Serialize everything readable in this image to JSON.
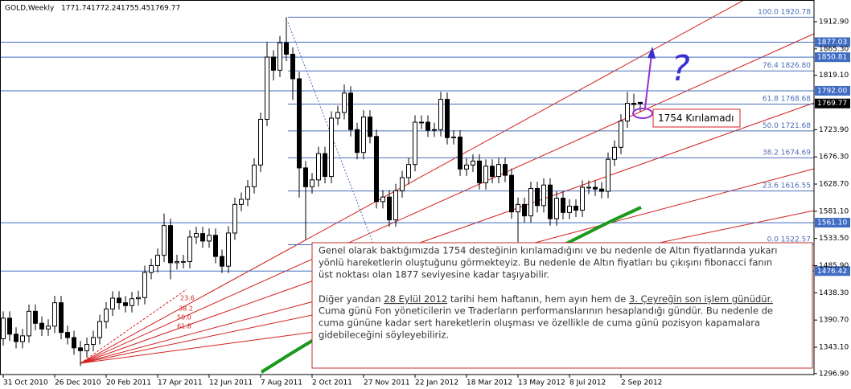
{
  "header": {
    "symbol": "GOLD,Weekly"
  },
  "chart_data": {
    "type": "candlestick",
    "categories": [
      "31 Oct 2010",
      null,
      null,
      null,
      null,
      null,
      null,
      null,
      "26 Dec 2010",
      null,
      null,
      null,
      null,
      null,
      null,
      null,
      "20 Feb 2011",
      null,
      null,
      null,
      null,
      null,
      null,
      null,
      "17 Apr 2011",
      null,
      null,
      null,
      null,
      null,
      null,
      null,
      "12 Jun 2011",
      null,
      null,
      null,
      null,
      null,
      null,
      null,
      "7 Aug 2011",
      null,
      null,
      null,
      null,
      null,
      null,
      null,
      "2 Oct 2011",
      null,
      null,
      null,
      null,
      null,
      null,
      null,
      "27 Nov 2011",
      null,
      null,
      null,
      null,
      null,
      null,
      null,
      "22 Jan 2012",
      null,
      null,
      null,
      null,
      null,
      null,
      null,
      "18 Mar 2012",
      null,
      null,
      null,
      null,
      null,
      null,
      null,
      "13 May 2012",
      null,
      null,
      null,
      null,
      null,
      null,
      null,
      "8 Jul 2012",
      null,
      null,
      null,
      null,
      null,
      null,
      null,
      "2 Sep 2012",
      null,
      null,
      null
    ],
    "open": [
      1358,
      1394,
      1366,
      1353,
      1363,
      1406,
      1385,
      1375,
      1380,
      1421,
      1369,
      1360,
      1342,
      1337,
      1348,
      1360,
      1388,
      1410,
      1429,
      1421,
      1416,
      1428,
      1430,
      1474,
      1486,
      1504,
      1556,
      1491,
      1493,
      1493,
      1536,
      1542,
      1529,
      1539,
      1502,
      1485,
      1543,
      1593,
      1602,
      1624,
      1662,
      1742,
      1851,
      1828,
      1876,
      1856,
      1813,
      1657,
      1624,
      1636,
      1682,
      1642,
      1744,
      1754,
      1788,
      1724,
      1684,
      1746,
      1712,
      1598,
      1606,
      1566,
      1617,
      1640,
      1663,
      1737,
      1737,
      1723,
      1724,
      1777,
      1710,
      1711,
      1655,
      1662,
      1669,
      1631,
      1660,
      1642,
      1663,
      1644,
      1580,
      1593,
      1573,
      1621,
      1591,
      1627,
      1568,
      1604,
      1579,
      1590,
      1583,
      1623,
      1623,
      1620,
      1616,
      1672,
      1693,
      1739,
      1770,
      1771.74
    ],
    "high": [
      1406,
      1406,
      1378,
      1375,
      1418,
      1418,
      1397,
      1392,
      1433,
      1433,
      1381,
      1372,
      1354,
      1360,
      1372,
      1400,
      1422,
      1441,
      1441,
      1433,
      1440,
      1442,
      1486,
      1498,
      1516,
      1577,
      1568,
      1505,
      1505,
      1548,
      1554,
      1554,
      1551,
      1551,
      1514,
      1555,
      1605,
      1614,
      1636,
      1674,
      1754,
      1877,
      1863,
      1888,
      1921,
      1868,
      1825,
      1669,
      1648,
      1694,
      1694,
      1756,
      1766,
      1803,
      1800,
      1736,
      1758,
      1758,
      1724,
      1618,
      1618,
      1629,
      1652,
      1675,
      1749,
      1749,
      1749,
      1736,
      1790,
      1789,
      1723,
      1723,
      1674,
      1681,
      1681,
      1672,
      1672,
      1675,
      1675,
      1656,
      1605,
      1605,
      1633,
      1633,
      1639,
      1639,
      1616,
      1616,
      1602,
      1602,
      1635,
      1635,
      1635,
      1632,
      1684,
      1705,
      1751,
      1790,
      1787,
      1772.24
    ],
    "low": [
      1346,
      1354,
      1341,
      1341,
      1351,
      1373,
      1363,
      1363,
      1368,
      1357,
      1348,
      1330,
      1310,
      1325,
      1336,
      1348,
      1376,
      1398,
      1409,
      1404,
      1404,
      1416,
      1418,
      1462,
      1474,
      1492,
      1462,
      1479,
      1481,
      1481,
      1524,
      1517,
      1517,
      1490,
      1473,
      1473,
      1531,
      1581,
      1590,
      1612,
      1650,
      1730,
      1810,
      1816,
      1844,
      1776,
      1605,
      1532,
      1612,
      1624,
      1630,
      1630,
      1732,
      1742,
      1712,
      1672,
      1672,
      1700,
      1586,
      1586,
      1554,
      1554,
      1605,
      1628,
      1651,
      1725,
      1711,
      1711,
      1712,
      1698,
      1698,
      1643,
      1643,
      1650,
      1619,
      1619,
      1630,
      1630,
      1632,
      1568,
      1527,
      1561,
      1561,
      1579,
      1579,
      1556,
      1556,
      1567,
      1567,
      1571,
      1571,
      1611,
      1608,
      1604,
      1604,
      1660,
      1681,
      1727,
      1756,
      1755.45
    ],
    "close": [
      1394,
      1366,
      1353,
      1363,
      1406,
      1385,
      1375,
      1380,
      1421,
      1369,
      1360,
      1342,
      1337,
      1348,
      1360,
      1388,
      1410,
      1429,
      1421,
      1416,
      1428,
      1430,
      1474,
      1486,
      1504,
      1556,
      1491,
      1493,
      1493,
      1536,
      1542,
      1529,
      1539,
      1502,
      1485,
      1543,
      1593,
      1602,
      1624,
      1662,
      1742,
      1851,
      1828,
      1876,
      1856,
      1813,
      1657,
      1624,
      1636,
      1682,
      1642,
      1744,
      1754,
      1788,
      1724,
      1684,
      1746,
      1712,
      1598,
      1606,
      1566,
      1617,
      1640,
      1663,
      1737,
      1737,
      1723,
      1724,
      1777,
      1710,
      1711,
      1655,
      1662,
      1669,
      1631,
      1660,
      1642,
      1663,
      1644,
      1580,
      1593,
      1573,
      1621,
      1591,
      1627,
      1568,
      1604,
      1579,
      1590,
      1583,
      1623,
      1623,
      1620,
      1616,
      1672,
      1693,
      1739,
      1770,
      1768,
      1769.77
    ],
    "up_color": "#ffffff",
    "down_color": "#000000",
    "outline_color": "#000000",
    "ylim": [
      1295.3,
      1950.9
    ],
    "yticks": [
      {
        "value": 1912.9,
        "label": "1912.90"
      },
      {
        "value": 1865.3,
        "label": "1865.30"
      },
      {
        "value": 1819.1,
        "label": "1819.10"
      },
      {
        "value": 1723.9,
        "label": "1723.90"
      },
      {
        "value": 1676.3,
        "label": "1676.30"
      },
      {
        "value": 1628.7,
        "label": "1628.70"
      },
      {
        "value": 1581.1,
        "label": "1581.10"
      },
      {
        "value": 1533.5,
        "label": "1533.50"
      },
      {
        "value": 1485.9,
        "label": "1485.90"
      },
      {
        "value": 1438.3,
        "label": "1438.30"
      },
      {
        "value": 1390.7,
        "label": "1390.70"
      },
      {
        "value": 1343.1,
        "label": "1343.10"
      },
      {
        "value": 1296.9,
        "label": "1296.90"
      }
    ],
    "grid": false,
    "fib_color": "#4a6db8",
    "fib": [
      {
        "ratio": {
          "value": 100,
          "label": "100.0"
        },
        "price": 1920.78
      },
      {
        "ratio": 76.4,
        "price": {
          "value": 1826.8,
          "label": "1826.80"
        }
      },
      {
        "ratio": 61.8,
        "price": 1768.68
      },
      {
        "ratio": {
          "value": 50,
          "label": "50.0"
        },
        "price": 1721.68
      },
      {
        "ratio": 38.2,
        "price": 1674.69
      },
      {
        "ratio": 23.6,
        "price": 1616.55
      },
      {
        "ratio": {
          "value": 0,
          "label": "0.0"
        },
        "price": 1522.57
      }
    ],
    "hlines_color": "#3f6cc4",
    "hlines": [
      1877.03,
      1850.81,
      {
        "value": 1792,
        "label": "1792.00"
      },
      {
        "value": 1561.1,
        "label": "1561.10"
      },
      1476.42
    ],
    "fan_color": "#d42020",
    "fan_labels": [
      23.6,
      38.2,
      {
        "value": 50,
        "label": "50.0"
      },
      61.8
    ],
    "annotation": "1754 Kırılamadı",
    "question": "?",
    "note": {
      "paragraph1": [
        "Genel olarak baktığımızda 1754 desteğinin kırılamadığını ve bu nedenle de Altın fiyatlarında yukarı",
        "yönlü hareketlerin oluştuğunu görmekteyiz. Bu nedenle de Altın fiyatları bu çıkışını fibonacci fanın",
        "üst noktası olan 1877 seviyesine kadar taşıyabilir."
      ],
      "paragraph2_first": [
        {
          "text": "Diğer yandan ",
          "underline": false
        },
        {
          "text": "28 Eylül 2012",
          "underline": true
        },
        {
          "text": " tarihi hem haftanın, hem ayın hem de ",
          "underline": false
        },
        {
          "text": "3. Çeyreğin son işlem günüdür.",
          "underline": true
        }
      ],
      "paragraph2": [
        "Cuma günü Fon yöneticilerin ve Traderların performanslarının hesaplandığı gündür. Bu nedenle de",
        "cuma gününe kadar sert hareketlerin oluşması ve özellikle de cuma günü pozisyon kapamalara",
        "gidebileceğini söyleyebiliriz."
      ]
    }
  }
}
